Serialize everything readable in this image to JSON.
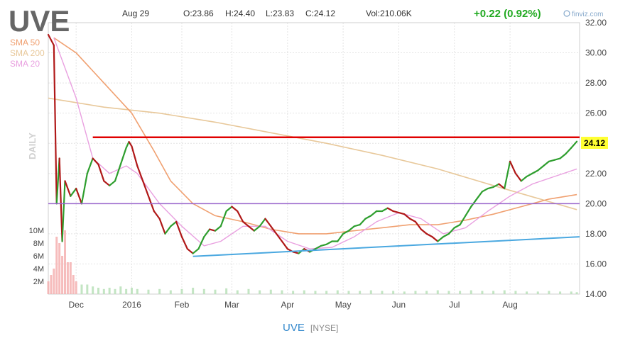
{
  "header": {
    "ticker": "UVE",
    "date": "Aug 29",
    "open": "O:23.86",
    "high": "H:24.40",
    "low": "L:23.83",
    "close": "C:24.12",
    "volume": "Vol:210.06K",
    "change": "+0.22 (0.92%)",
    "brand": "finviz.com",
    "change_color": "#22aa22"
  },
  "footer": {
    "ticker": "UVE",
    "exchange": "[NYSE]"
  },
  "chart_data": {
    "type": "line",
    "period_label": "DAILY",
    "legend": [
      {
        "name": "SMA 50",
        "color": "#f0a070"
      },
      {
        "name": "SMA 200",
        "color": "#e8c89a"
      },
      {
        "name": "SMA 20",
        "color": "#e9a0e0"
      }
    ],
    "y_ticks": [
      "32.00",
      "30.00",
      "28.00",
      "26.00",
      "24.00",
      "22.00",
      "20.00",
      "18.00",
      "16.00",
      "14.00"
    ],
    "ylim": [
      14,
      32
    ],
    "x_ticks": [
      "Dec",
      "2016",
      "Feb",
      "Mar",
      "Apr",
      "May",
      "Jun",
      "Jul",
      "Aug"
    ],
    "x_tick_index": [
      10,
      30,
      48,
      66,
      86,
      106,
      126,
      146,
      166
    ],
    "volume_ticks": [
      "10M",
      "8M",
      "6M",
      "4M",
      "2M"
    ],
    "last_price": "24.12",
    "price_path": [
      [
        0,
        31.2
      ],
      [
        2,
        30.5
      ],
      [
        3,
        20.0
      ],
      [
        4,
        23.0
      ],
      [
        5,
        17.5
      ],
      [
        6,
        21.5
      ],
      [
        8,
        20.5
      ],
      [
        10,
        21.0
      ],
      [
        12,
        20.0
      ],
      [
        14,
        22.0
      ],
      [
        16,
        23.0
      ],
      [
        18,
        22.6
      ],
      [
        20,
        21.5
      ],
      [
        22,
        21.2
      ],
      [
        24,
        21.5
      ],
      [
        26,
        22.6
      ],
      [
        28,
        23.7
      ],
      [
        29,
        24.1
      ],
      [
        30,
        23.8
      ],
      [
        32,
        22.5
      ],
      [
        34,
        21.5
      ],
      [
        36,
        20.5
      ],
      [
        38,
        19.5
      ],
      [
        40,
        19.0
      ],
      [
        42,
        18.0
      ],
      [
        44,
        18.5
      ],
      [
        46,
        18.8
      ],
      [
        48,
        17.8
      ],
      [
        50,
        17.0
      ],
      [
        52,
        16.7
      ],
      [
        54,
        17.0
      ],
      [
        56,
        17.8
      ],
      [
        58,
        18.3
      ],
      [
        60,
        18.2
      ],
      [
        62,
        18.5
      ],
      [
        64,
        19.5
      ],
      [
        66,
        19.8
      ],
      [
        68,
        19.5
      ],
      [
        70,
        18.8
      ],
      [
        72,
        18.5
      ],
      [
        74,
        18.2
      ],
      [
        76,
        18.5
      ],
      [
        78,
        19.0
      ],
      [
        80,
        18.5
      ],
      [
        82,
        18.0
      ],
      [
        84,
        17.5
      ],
      [
        86,
        17.0
      ],
      [
        88,
        16.8
      ],
      [
        90,
        16.7
      ],
      [
        92,
        17.0
      ],
      [
        94,
        16.8
      ],
      [
        96,
        17.0
      ],
      [
        98,
        17.2
      ],
      [
        100,
        17.3
      ],
      [
        102,
        17.5
      ],
      [
        104,
        17.5
      ],
      [
        106,
        18.0
      ],
      [
        108,
        18.2
      ],
      [
        110,
        18.5
      ],
      [
        112,
        18.6
      ],
      [
        114,
        19.0
      ],
      [
        116,
        19.2
      ],
      [
        118,
        19.5
      ],
      [
        120,
        19.5
      ],
      [
        122,
        19.7
      ],
      [
        124,
        19.5
      ],
      [
        126,
        19.4
      ],
      [
        128,
        19.3
      ],
      [
        130,
        19.0
      ],
      [
        132,
        18.8
      ],
      [
        134,
        18.3
      ],
      [
        136,
        18.0
      ],
      [
        138,
        17.8
      ],
      [
        140,
        17.5
      ],
      [
        142,
        17.8
      ],
      [
        144,
        18.0
      ],
      [
        146,
        18.4
      ],
      [
        148,
        18.6
      ],
      [
        150,
        19.2
      ],
      [
        152,
        19.8
      ],
      [
        154,
        20.3
      ],
      [
        156,
        20.8
      ],
      [
        158,
        21.0
      ],
      [
        160,
        21.1
      ],
      [
        162,
        21.3
      ],
      [
        164,
        21.0
      ],
      [
        166,
        22.8
      ],
      [
        168,
        22.0
      ],
      [
        170,
        21.5
      ],
      [
        172,
        21.8
      ],
      [
        174,
        22.0
      ],
      [
        176,
        22.2
      ],
      [
        178,
        22.5
      ],
      [
        180,
        22.8
      ],
      [
        182,
        22.9
      ],
      [
        184,
        23.0
      ],
      [
        186,
        23.3
      ],
      [
        188,
        23.7
      ],
      [
        190,
        24.12
      ]
    ],
    "sma20": [
      [
        2,
        31.0
      ],
      [
        10,
        27.0
      ],
      [
        16,
        23.0
      ],
      [
        22,
        22.0
      ],
      [
        28,
        22.5
      ],
      [
        32,
        22.0
      ],
      [
        40,
        20.0
      ],
      [
        48,
        18.5
      ],
      [
        56,
        17.2
      ],
      [
        62,
        17.5
      ],
      [
        70,
        18.5
      ],
      [
        78,
        18.5
      ],
      [
        86,
        17.5
      ],
      [
        94,
        17.0
      ],
      [
        102,
        17.1
      ],
      [
        110,
        17.8
      ],
      [
        118,
        18.8
      ],
      [
        126,
        19.4
      ],
      [
        134,
        19.0
      ],
      [
        142,
        18.0
      ],
      [
        150,
        18.4
      ],
      [
        158,
        19.5
      ],
      [
        166,
        20.5
      ],
      [
        174,
        21.3
      ],
      [
        182,
        21.8
      ],
      [
        190,
        22.3
      ]
    ],
    "sma50": [
      [
        2,
        31.0
      ],
      [
        10,
        30.0
      ],
      [
        20,
        28.0
      ],
      [
        30,
        26.0
      ],
      [
        38,
        23.5
      ],
      [
        44,
        21.5
      ],
      [
        52,
        20.0
      ],
      [
        60,
        19.2
      ],
      [
        70,
        18.8
      ],
      [
        80,
        18.3
      ],
      [
        90,
        18.0
      ],
      [
        100,
        18.0
      ],
      [
        110,
        18.2
      ],
      [
        120,
        18.4
      ],
      [
        130,
        18.6
      ],
      [
        140,
        18.6
      ],
      [
        150,
        18.9
      ],
      [
        160,
        19.3
      ],
      [
        170,
        19.8
      ],
      [
        180,
        20.3
      ],
      [
        190,
        20.6
      ]
    ],
    "sma200": [
      [
        0,
        27.0
      ],
      [
        20,
        26.4
      ],
      [
        40,
        26.0
      ],
      [
        60,
        25.4
      ],
      [
        80,
        24.7
      ],
      [
        100,
        24.0
      ],
      [
        120,
        23.2
      ],
      [
        140,
        22.3
      ],
      [
        160,
        21.2
      ],
      [
        175,
        20.4
      ],
      [
        190,
        19.6
      ]
    ],
    "resistance": {
      "x": [
        16,
        191
      ],
      "y": 24.4,
      "color": "#e00000"
    },
    "horizontal": {
      "x": [
        0,
        191
      ],
      "y": 20.0,
      "color": "#9966cc"
    },
    "support": {
      "points": [
        [
          52,
          16.5
        ],
        [
          191,
          17.8
        ]
      ],
      "color": "#4aa8e0"
    },
    "volume": [
      [
        0,
        2
      ],
      [
        1,
        3
      ],
      [
        2,
        4
      ],
      [
        3,
        9
      ],
      [
        4,
        8
      ],
      [
        5,
        6
      ],
      [
        6,
        10
      ],
      [
        7,
        5
      ],
      [
        8,
        5
      ],
      [
        9,
        3
      ],
      [
        10,
        2
      ],
      [
        12,
        1.5
      ],
      [
        14,
        1.5
      ],
      [
        16,
        1.2
      ],
      [
        18,
        1.0
      ],
      [
        20,
        0.8
      ],
      [
        22,
        1.0
      ],
      [
        24,
        0.8
      ],
      [
        26,
        1.2
      ],
      [
        28,
        0.8
      ],
      [
        30,
        1.0
      ],
      [
        32,
        0.8
      ],
      [
        36,
        0.7
      ],
      [
        40,
        0.8
      ],
      [
        44,
        0.6
      ],
      [
        48,
        0.8
      ],
      [
        52,
        1.0
      ],
      [
        56,
        0.8
      ],
      [
        60,
        0.7
      ],
      [
        64,
        0.9
      ],
      [
        68,
        0.6
      ],
      [
        72,
        0.8
      ],
      [
        76,
        0.6
      ],
      [
        80,
        0.7
      ],
      [
        84,
        0.6
      ],
      [
        88,
        0.5
      ],
      [
        92,
        0.6
      ],
      [
        96,
        0.5
      ],
      [
        100,
        0.5
      ],
      [
        104,
        0.6
      ],
      [
        108,
        0.5
      ],
      [
        112,
        0.5
      ],
      [
        116,
        0.6
      ],
      [
        120,
        0.5
      ],
      [
        124,
        0.5
      ],
      [
        128,
        0.4
      ],
      [
        132,
        0.5
      ],
      [
        136,
        0.5
      ],
      [
        140,
        0.6
      ],
      [
        144,
        0.5
      ],
      [
        148,
        0.5
      ],
      [
        152,
        0.6
      ],
      [
        156,
        0.5
      ],
      [
        160,
        0.5
      ],
      [
        164,
        0.6
      ],
      [
        168,
        0.5
      ],
      [
        172,
        0.4
      ],
      [
        176,
        0.4
      ],
      [
        180,
        0.5
      ],
      [
        184,
        0.4
      ],
      [
        188,
        0.4
      ],
      [
        190,
        0.3
      ]
    ]
  }
}
